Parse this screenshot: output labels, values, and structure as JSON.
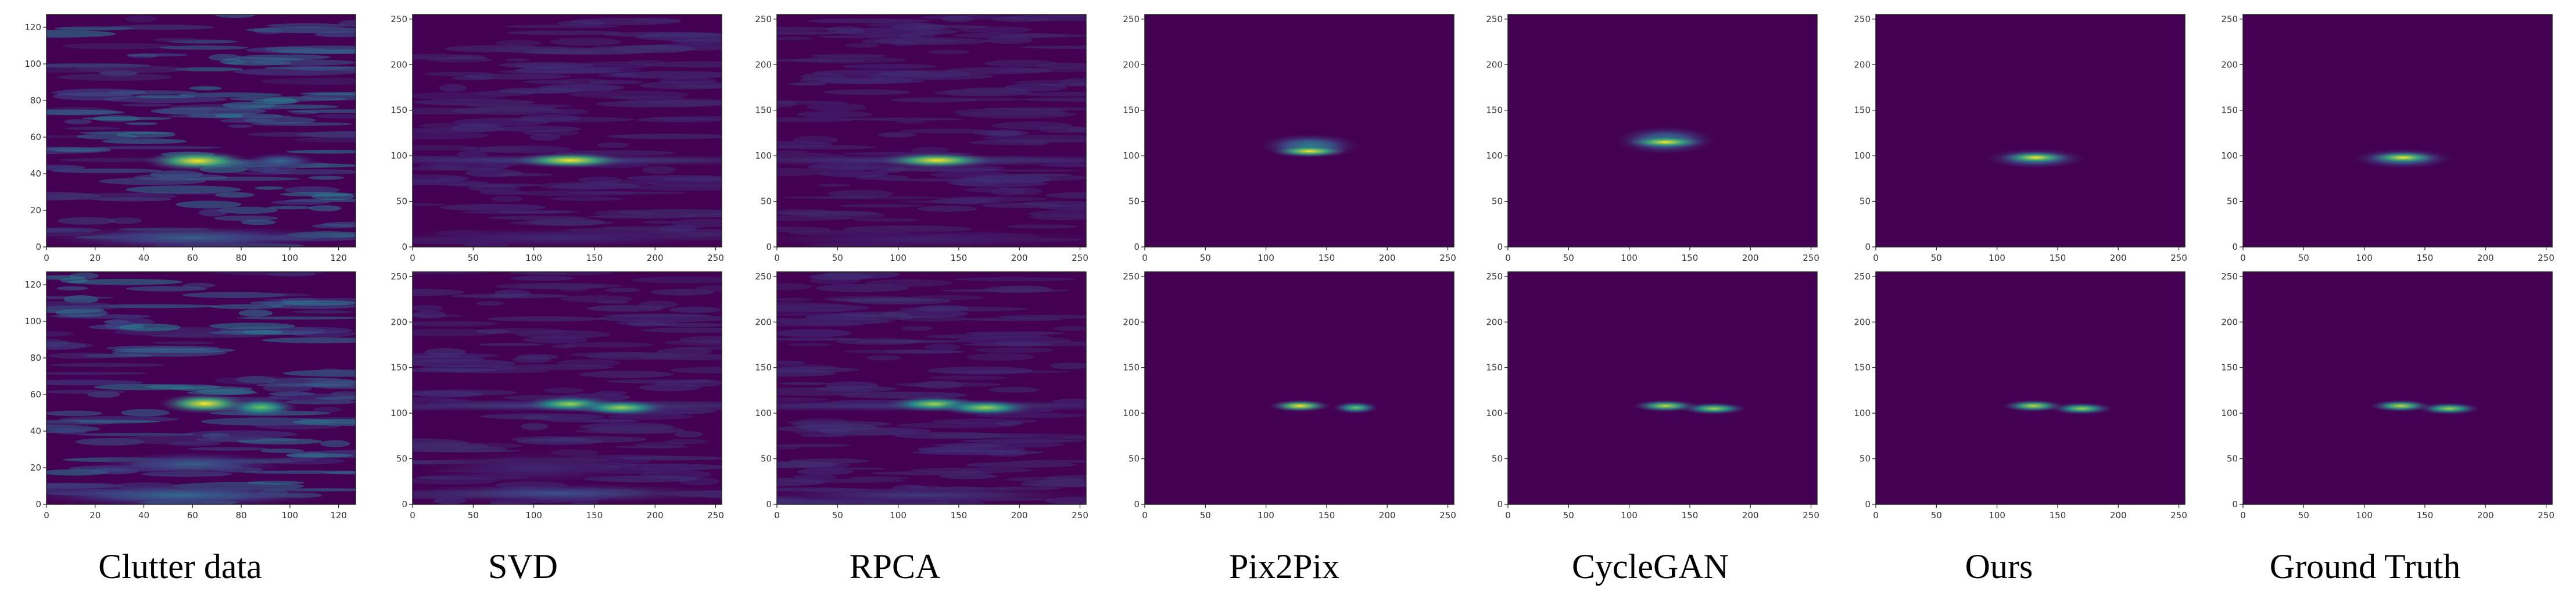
{
  "colors": {
    "background": "#440154",
    "mid": "#21918c",
    "peak": "#fde725"
  },
  "chart_data": [
    {
      "type": "heatmap",
      "column": "Clutter data",
      "row": 1,
      "xlim": [
        0,
        127
      ],
      "ylim": [
        0,
        127
      ],
      "xticks": [
        "0",
        "20",
        "40",
        "60",
        "80",
        "100",
        "120"
      ],
      "yticks": [
        "0",
        "20",
        "40",
        "60",
        "80",
        "100",
        "120"
      ],
      "blobs": [
        {
          "x": 62,
          "y": 47,
          "wx": 14,
          "wy": 2.5,
          "v": 1.0
        },
        {
          "x": 96,
          "y": 47,
          "wx": 10,
          "wy": 2,
          "v": 0.35
        },
        {
          "x": 60,
          "y": 5,
          "wx": 40,
          "wy": 3,
          "v": 0.3
        }
      ],
      "noise": 0.35,
      "noise_seed": 11
    },
    {
      "type": "heatmap",
      "column": "SVD",
      "row": 1,
      "xlim": [
        0,
        255
      ],
      "ylim": [
        0,
        255
      ],
      "xticks": [
        "0",
        "50",
        "100",
        "150",
        "200",
        "250"
      ],
      "yticks": [
        "0",
        "50",
        "100",
        "150",
        "200",
        "250"
      ],
      "blobs": [
        {
          "x": 130,
          "y": 95,
          "wx": 30,
          "wy": 4,
          "v": 1.0
        },
        {
          "x": 128,
          "y": 95,
          "wx": 160,
          "wy": 3,
          "v": 0.2
        },
        {
          "x": 120,
          "y": 10,
          "wx": 100,
          "wy": 5,
          "v": 0.12
        }
      ],
      "noise": 0.06,
      "noise_seed": 21
    },
    {
      "type": "heatmap",
      "column": "RPCA",
      "row": 1,
      "xlim": [
        0,
        255
      ],
      "ylim": [
        0,
        255
      ],
      "xticks": [
        "0",
        "50",
        "100",
        "150",
        "200",
        "250"
      ],
      "yticks": [
        "0",
        "50",
        "100",
        "150",
        "200",
        "250"
      ],
      "blobs": [
        {
          "x": 132,
          "y": 95,
          "wx": 30,
          "wy": 4,
          "v": 1.0
        },
        {
          "x": 128,
          "y": 95,
          "wx": 160,
          "wy": 3,
          "v": 0.18
        },
        {
          "x": 120,
          "y": 8,
          "wx": 100,
          "wy": 5,
          "v": 0.1
        }
      ],
      "noise": 0.05,
      "noise_seed": 31
    },
    {
      "type": "heatmap",
      "column": "Pix2Pix",
      "row": 1,
      "xlim": [
        0,
        255
      ],
      "ylim": [
        0,
        255
      ],
      "xticks": [
        "0",
        "50",
        "100",
        "150",
        "200",
        "250"
      ],
      "yticks": [
        "0",
        "50",
        "100",
        "150",
        "200",
        "250"
      ],
      "blobs": [
        {
          "x": 136,
          "y": 105,
          "wx": 20,
          "wy": 3,
          "v": 1.0
        },
        {
          "x": 136,
          "y": 111,
          "wx": 26,
          "wy": 6,
          "v": 0.45
        }
      ],
      "noise": 0.0,
      "noise_seed": 41
    },
    {
      "type": "heatmap",
      "column": "CycleGAN",
      "row": 1,
      "xlim": [
        0,
        255
      ],
      "ylim": [
        0,
        255
      ],
      "xticks": [
        "0",
        "50",
        "100",
        "150",
        "200",
        "250"
      ],
      "yticks": [
        "0",
        "50",
        "100",
        "150",
        "200",
        "250"
      ],
      "blobs": [
        {
          "x": 130,
          "y": 115,
          "wx": 20,
          "wy": 3,
          "v": 1.0
        },
        {
          "x": 130,
          "y": 117,
          "wx": 26,
          "wy": 7,
          "v": 0.45
        }
      ],
      "noise": 0.0,
      "noise_seed": 51
    },
    {
      "type": "heatmap",
      "column": "Ours",
      "row": 1,
      "xlim": [
        0,
        255
      ],
      "ylim": [
        0,
        255
      ],
      "xticks": [
        "0",
        "50",
        "100",
        "150",
        "200",
        "250"
      ],
      "yticks": [
        "0",
        "50",
        "100",
        "150",
        "200",
        "250"
      ],
      "blobs": [
        {
          "x": 132,
          "y": 98,
          "wx": 18,
          "wy": 3,
          "v": 1.0
        },
        {
          "x": 132,
          "y": 97,
          "wx": 26,
          "wy": 5,
          "v": 0.45
        }
      ],
      "noise": 0.0,
      "noise_seed": 61
    },
    {
      "type": "heatmap",
      "column": "Ground Truth",
      "row": 1,
      "xlim": [
        0,
        255
      ],
      "ylim": [
        0,
        255
      ],
      "xticks": [
        "0",
        "50",
        "100",
        "150",
        "200",
        "250"
      ],
      "yticks": [
        "0",
        "50",
        "100",
        "150",
        "200",
        "250"
      ],
      "blobs": [
        {
          "x": 132,
          "y": 98,
          "wx": 18,
          "wy": 3,
          "v": 1.0
        },
        {
          "x": 132,
          "y": 97,
          "wx": 26,
          "wy": 5,
          "v": 0.45
        }
      ],
      "noise": 0.0,
      "noise_seed": 71
    },
    {
      "type": "heatmap",
      "column": "Clutter data",
      "row": 2,
      "xlim": [
        0,
        127
      ],
      "ylim": [
        0,
        127
      ],
      "xticks": [
        "0",
        "20",
        "40",
        "60",
        "80",
        "100",
        "120"
      ],
      "yticks": [
        "0",
        "20",
        "40",
        "60",
        "80",
        "100",
        "120"
      ],
      "blobs": [
        {
          "x": 65,
          "y": 55,
          "wx": 12,
          "wy": 2.5,
          "v": 1.0
        },
        {
          "x": 88,
          "y": 53,
          "wx": 10,
          "wy": 2.5,
          "v": 0.75
        },
        {
          "x": 60,
          "y": 22,
          "wx": 25,
          "wy": 3,
          "v": 0.3
        },
        {
          "x": 55,
          "y": 5,
          "wx": 40,
          "wy": 3,
          "v": 0.35
        }
      ],
      "noise": 0.35,
      "noise_seed": 12
    },
    {
      "type": "heatmap",
      "column": "SVD",
      "row": 2,
      "xlim": [
        0,
        255
      ],
      "ylim": [
        0,
        255
      ],
      "xticks": [
        "0",
        "50",
        "100",
        "150",
        "200",
        "250"
      ],
      "yticks": [
        "0",
        "50",
        "100",
        "150",
        "200",
        "250"
      ],
      "blobs": [
        {
          "x": 130,
          "y": 110,
          "wx": 25,
          "wy": 4,
          "v": 0.85
        },
        {
          "x": 172,
          "y": 106,
          "wx": 25,
          "wy": 4,
          "v": 0.85
        },
        {
          "x": 128,
          "y": 108,
          "wx": 160,
          "wy": 3,
          "v": 0.2
        },
        {
          "x": 120,
          "y": 12,
          "wx": 90,
          "wy": 5,
          "v": 0.25
        },
        {
          "x": 100,
          "y": 40,
          "wx": 60,
          "wy": 8,
          "v": 0.12
        }
      ],
      "noise": 0.07,
      "noise_seed": 22
    },
    {
      "type": "heatmap",
      "column": "RPCA",
      "row": 2,
      "xlim": [
        0,
        255
      ],
      "ylim": [
        0,
        255
      ],
      "xticks": [
        "0",
        "50",
        "100",
        "150",
        "200",
        "250"
      ],
      "yticks": [
        "0",
        "50",
        "100",
        "150",
        "200",
        "250"
      ],
      "blobs": [
        {
          "x": 130,
          "y": 110,
          "wx": 25,
          "wy": 4,
          "v": 0.85
        },
        {
          "x": 172,
          "y": 106,
          "wx": 25,
          "wy": 4,
          "v": 0.85
        },
        {
          "x": 128,
          "y": 108,
          "wx": 160,
          "wy": 3,
          "v": 0.18
        },
        {
          "x": 120,
          "y": 10,
          "wx": 90,
          "wy": 4,
          "v": 0.18
        }
      ],
      "noise": 0.06,
      "noise_seed": 32
    },
    {
      "type": "heatmap",
      "column": "Pix2Pix",
      "row": 2,
      "xlim": [
        0,
        255
      ],
      "ylim": [
        0,
        255
      ],
      "xticks": [
        "0",
        "50",
        "100",
        "150",
        "200",
        "250"
      ],
      "yticks": [
        "0",
        "50",
        "100",
        "150",
        "200",
        "250"
      ],
      "blobs": [
        {
          "x": 128,
          "y": 108,
          "wx": 16,
          "wy": 3,
          "v": 1.0
        },
        {
          "x": 174,
          "y": 106,
          "wx": 12,
          "wy": 3,
          "v": 0.75
        }
      ],
      "noise": 0.0,
      "noise_seed": 42
    },
    {
      "type": "heatmap",
      "column": "CycleGAN",
      "row": 2,
      "xlim": [
        0,
        255
      ],
      "ylim": [
        0,
        255
      ],
      "xticks": [
        "0",
        "50",
        "100",
        "150",
        "200",
        "250"
      ],
      "yticks": [
        "0",
        "50",
        "100",
        "150",
        "200",
        "250"
      ],
      "blobs": [
        {
          "x": 130,
          "y": 108,
          "wx": 17,
          "wy": 3,
          "v": 0.9
        },
        {
          "x": 170,
          "y": 105,
          "wx": 17,
          "wy": 3,
          "v": 0.85
        }
      ],
      "noise": 0.0,
      "noise_seed": 52
    },
    {
      "type": "heatmap",
      "column": "Ours",
      "row": 2,
      "xlim": [
        0,
        255
      ],
      "ylim": [
        0,
        255
      ],
      "xticks": [
        "0",
        "50",
        "100",
        "150",
        "200",
        "250"
      ],
      "yticks": [
        "0",
        "50",
        "100",
        "150",
        "200",
        "250"
      ],
      "blobs": [
        {
          "x": 130,
          "y": 108,
          "wx": 16,
          "wy": 3,
          "v": 0.9
        },
        {
          "x": 170,
          "y": 105,
          "wx": 16,
          "wy": 3,
          "v": 0.85
        }
      ],
      "noise": 0.0,
      "noise_seed": 62
    },
    {
      "type": "heatmap",
      "column": "Ground Truth",
      "row": 2,
      "xlim": [
        0,
        255
      ],
      "ylim": [
        0,
        255
      ],
      "xticks": [
        "0",
        "50",
        "100",
        "150",
        "200",
        "250"
      ],
      "yticks": [
        "0",
        "50",
        "100",
        "150",
        "200",
        "250"
      ],
      "blobs": [
        {
          "x": 130,
          "y": 108,
          "wx": 16,
          "wy": 3,
          "v": 0.9
        },
        {
          "x": 170,
          "y": 105,
          "wx": 16,
          "wy": 3,
          "v": 0.85
        }
      ],
      "noise": 0.0,
      "noise_seed": 72
    }
  ],
  "captions": [
    "Clutter data",
    "SVD",
    "RPCA",
    "Pix2Pix",
    "CycleGAN",
    "Ours",
    "Ground Truth"
  ]
}
